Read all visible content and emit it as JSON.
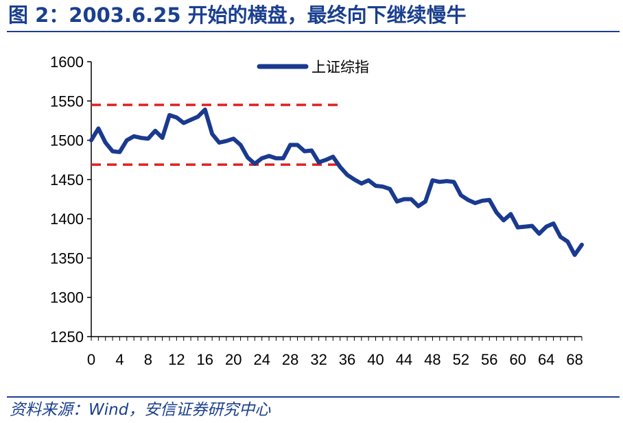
{
  "header": {
    "title": "图 2：2003.6.25 开始的横盘，最终向下继续慢牛"
  },
  "footer": {
    "source": "资料来源：Wind，安信证券研究中心"
  },
  "colors": {
    "series": "#1a3a8f",
    "band": "#e02020",
    "accent": "#1a3f8f"
  },
  "chart_data": {
    "type": "line",
    "title": "",
    "xlabel": "",
    "ylabel": "",
    "xlim": [
      0,
      69
    ],
    "ylim": [
      1250,
      1600
    ],
    "grid": false,
    "legend_position": "top-center",
    "x_ticks": [
      0,
      4,
      8,
      12,
      16,
      20,
      24,
      28,
      32,
      36,
      40,
      44,
      48,
      52,
      56,
      60,
      64,
      68
    ],
    "y_ticks": [
      1250,
      1300,
      1350,
      1400,
      1450,
      1500,
      1550,
      1600
    ],
    "x": [
      0,
      1,
      2,
      3,
      4,
      5,
      6,
      7,
      8,
      9,
      10,
      11,
      12,
      13,
      14,
      15,
      16,
      17,
      18,
      19,
      20,
      21,
      22,
      23,
      24,
      25,
      26,
      27,
      28,
      29,
      30,
      31,
      32,
      33,
      34,
      35,
      36,
      37,
      38,
      39,
      40,
      41,
      42,
      43,
      44,
      45,
      46,
      47,
      48,
      49,
      50,
      51,
      52,
      53,
      54,
      55,
      56,
      57,
      58,
      59,
      60,
      61,
      62,
      63,
      64,
      65,
      66,
      67,
      68,
      69
    ],
    "series": [
      {
        "name": "上证综指",
        "values": [
          1500,
          1515,
          1497,
          1486,
          1485,
          1500,
          1505,
          1503,
          1502,
          1512,
          1503,
          1532,
          1529,
          1522,
          1526,
          1530,
          1539,
          1508,
          1497,
          1499,
          1502,
          1494,
          1478,
          1470,
          1477,
          1480,
          1477,
          1477,
          1494,
          1494,
          1486,
          1487,
          1472,
          1475,
          1479,
          1466,
          1456,
          1450,
          1445,
          1449,
          1442,
          1441,
          1438,
          1422,
          1425,
          1425,
          1416,
          1422,
          1449,
          1447,
          1448,
          1447,
          1430,
          1424,
          1420,
          1423,
          1424,
          1408,
          1398,
          1406,
          1389,
          1390,
          1391,
          1381,
          1390,
          1394,
          1377,
          1371,
          1354,
          1367
        ]
      }
    ],
    "reference_lines": [
      {
        "y": 1545,
        "x_range": [
          0,
          34
        ]
      },
      {
        "y": 1469,
        "x_range": [
          0,
          34
        ]
      }
    ]
  }
}
